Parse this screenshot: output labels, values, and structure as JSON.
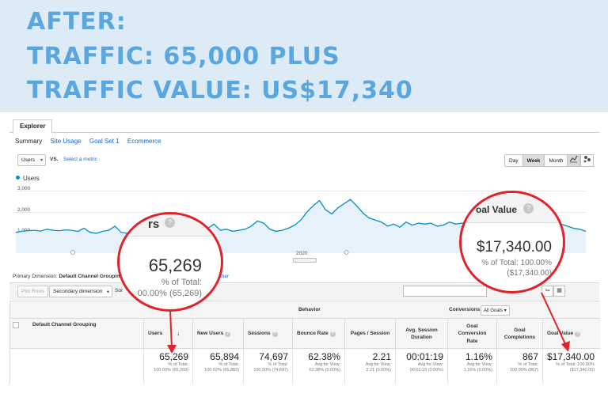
{
  "banner": {
    "line1": "AFTER:",
    "line2": "TRAFFIC: 65,000 PLUS",
    "line3": "TRAFFIC VALUE: US$17,340",
    "color": "#5aa7df",
    "bg": "#dcebf6"
  },
  "explorer": {
    "tab": "Explorer",
    "subnav": [
      "Summary",
      "Site Usage",
      "Goal Set 1",
      "Ecommerce"
    ]
  },
  "controls": {
    "metric": "Users",
    "vs": "VS.",
    "select_metric": "Select a metric",
    "ranges": [
      "Day",
      "Week",
      "Month"
    ],
    "selected_range": "Week"
  },
  "chart_data": {
    "type": "line",
    "series": [
      {
        "name": "Users",
        "values": [
          900,
          950,
          980,
          1000,
          960,
          1050,
          1000,
          980,
          1020,
          1000,
          940,
          1100,
          900,
          850,
          950,
          1000,
          1200,
          900,
          850,
          1050,
          1100,
          1400,
          950,
          1050,
          900,
          1000,
          1150,
          1050,
          1000,
          1100,
          950,
          1100,
          1300,
          1000,
          1050,
          950,
          1000,
          1050,
          1200,
          1450,
          1350,
          1050,
          950,
          1000,
          1100,
          1250,
          1500,
          1900,
          2200,
          2450,
          2000,
          1800,
          2100,
          2300,
          2500,
          2200,
          1850,
          1600,
          1500,
          1400,
          1200,
          1300,
          1150,
          1400,
          1250,
          1350,
          1300,
          1350,
          1200,
          1250,
          1400,
          1300,
          1350,
          1300,
          1100,
          1150,
          1250,
          1200,
          1150,
          1100,
          1200,
          1300,
          1350,
          1250,
          1250,
          1200,
          1350,
          1400,
          1300,
          1200,
          1100,
          1050,
          950
        ]
      }
    ],
    "yticks": [
      "3,000",
      "2,000",
      "1,000"
    ],
    "xticks": [
      "2020"
    ],
    "ylim": [
      0,
      3300
    ],
    "color": "#058dc7"
  },
  "primary_dimension": {
    "label": "Primary Dimension:",
    "value": "Default Channel Grouping",
    "other": "ther"
  },
  "toolbar": {
    "plot_rows": "Plot Rows",
    "secondary_dimension": "Secondary dimension",
    "sort": "Sor"
  },
  "table": {
    "dimension_header": "Default Channel Grouping",
    "group_behavior": "Behavior",
    "group_conversions": "Conversions",
    "goals_select": "All Goals",
    "columns": [
      "Users",
      "New Users",
      "Sessions",
      "Bounce Rate",
      "Pages / Session",
      "Avg. Session Duration",
      "Goal Conversion Rate",
      "Goal Completions",
      "Goal Value"
    ],
    "totals": [
      {
        "value": "65,269",
        "sub1": "% of Total:",
        "sub2": "100.00% (65,269)"
      },
      {
        "value": "65,894",
        "sub1": "% of Total:",
        "sub2": "100.02% (65,883)"
      },
      {
        "value": "74,697",
        "sub1": "% of Total:",
        "sub2": "100.00% (74,697)"
      },
      {
        "value": "62.38%",
        "sub1": "Avg for View:",
        "sub2": "62.38% (0.00%)"
      },
      {
        "value": "2.21",
        "sub1": "Avg for View:",
        "sub2": "2.21 (0.00%)"
      },
      {
        "value": "00:01:19",
        "sub1": "Avg for View:",
        "sub2": "00:01:19 (0.00%)"
      },
      {
        "value": "1.16%",
        "sub1": "Avg for View:",
        "sub2": "1.16% (0.00%)"
      },
      {
        "value": "867",
        "sub1": "% of Total:",
        "sub2": "100.00% (867)"
      },
      {
        "value": "$17,340.00",
        "sub1": "% of Total: 100.00%",
        "sub2": "($17,340.00)"
      }
    ]
  },
  "callouts": {
    "left": {
      "header": "rs",
      "value": "65,269",
      "sub1": "% of Total:",
      "sub2": "00.00% (65,269)"
    },
    "right": {
      "header": "oal Value",
      "value": "$17,340.00",
      "sub1": "% of Total: 100.00%",
      "sub2": "($17,340.00)"
    },
    "color": "#e0232b"
  }
}
